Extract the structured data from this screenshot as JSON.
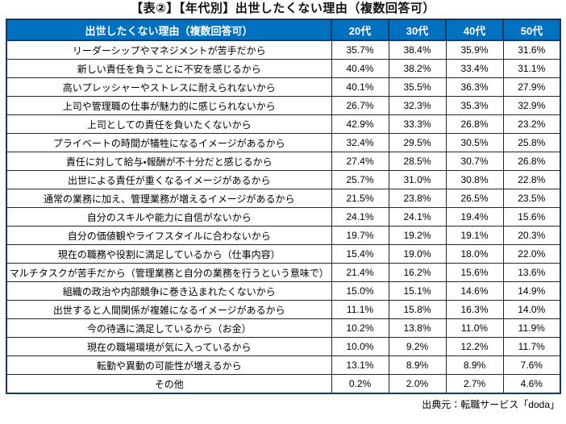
{
  "title": "【表②】【年代別】出世したくない理由（複数回答可）",
  "table": {
    "header": {
      "reason_label": "出世したくない理由（複数回答可）",
      "age_groups": [
        "20代",
        "30代",
        "40代",
        "50代"
      ]
    },
    "rows": [
      {
        "reason": "リーダーシップやマネジメントが苦手だから",
        "values": [
          "35.7%",
          "38.4%",
          "35.9%",
          "31.6%"
        ]
      },
      {
        "reason": "新しい責任を負うことに不安を感じるから",
        "values": [
          "40.4%",
          "38.2%",
          "33.4%",
          "31.1%"
        ]
      },
      {
        "reason": "高いプレッシャーやストレスに耐えられないから",
        "values": [
          "40.1%",
          "35.5%",
          "36.3%",
          "27.9%"
        ]
      },
      {
        "reason": "上司や管理職の仕事が魅力的に感じられないから",
        "values": [
          "26.7%",
          "32.3%",
          "35.3%",
          "32.9%"
        ]
      },
      {
        "reason": "上司としての責任を負いたくないから",
        "values": [
          "42.9%",
          "33.3%",
          "26.8%",
          "23.2%"
        ]
      },
      {
        "reason": "プライベートの時間が犠牲になるイメージがあるから",
        "values": [
          "32.4%",
          "29.5%",
          "30.5%",
          "25.8%"
        ]
      },
      {
        "reason": "責任に対して給与・報酬が不十分だと感じるから",
        "values": [
          "27.4%",
          "28.5%",
          "30.7%",
          "26.8%"
        ]
      },
      {
        "reason": "出世による責任が重くなるイメージがあるから",
        "values": [
          "25.7%",
          "31.0%",
          "30.8%",
          "22.8%"
        ]
      },
      {
        "reason": "通常の業務に加え、管理業務が増えるイメージがあるから",
        "values": [
          "21.5%",
          "23.8%",
          "26.5%",
          "23.5%"
        ]
      },
      {
        "reason": "自分のスキルや能力に自信がないから",
        "values": [
          "24.1%",
          "24.1%",
          "19.4%",
          "15.6%"
        ]
      },
      {
        "reason": "自分の価値観やライフスタイルに合わないから",
        "values": [
          "19.7%",
          "19.2%",
          "19.1%",
          "20.3%"
        ]
      },
      {
        "reason": "現在の職務や役割に満足しているから（仕事内容）",
        "values": [
          "15.4%",
          "19.0%",
          "18.0%",
          "22.0%"
        ]
      },
      {
        "reason": "マルチタスクが苦手だから（管理業務と自分の業務を行うという意味で）",
        "values": [
          "21.4%",
          "16.2%",
          "15.6%",
          "13.6%"
        ]
      },
      {
        "reason": "組織の政治や内部競争に巻き込まれたくないから",
        "values": [
          "15.0%",
          "15.1%",
          "14.6%",
          "14.9%"
        ]
      },
      {
        "reason": "出世すると人間関係が複雑になるイメージがあるから",
        "values": [
          "11.1%",
          "15.8%",
          "16.3%",
          "14.0%"
        ]
      },
      {
        "reason": "今の待遇に満足しているから（お金）",
        "values": [
          "10.2%",
          "13.8%",
          "11.0%",
          "11.9%"
        ]
      },
      {
        "reason": "現在の職場環境が気に入っているから",
        "values": [
          "10.0%",
          "9.2%",
          "12.2%",
          "11.7%"
        ]
      },
      {
        "reason": "転勤や異動の可能性が増えるから",
        "values": [
          "13.1%",
          "8.9%",
          "8.9%",
          "7.6%"
        ]
      },
      {
        "reason": "その他",
        "values": [
          "0.2%",
          "2.0%",
          "2.7%",
          "4.6%"
        ]
      }
    ]
  },
  "footer": {
    "source": "出典元：転職サービス「doda」"
  },
  "colors": {
    "header_bg": "#0070C0",
    "header_text": "#FFFFFF",
    "border_dark": "#17375E",
    "grid": "#262626"
  },
  "chart_data": {
    "type": "table",
    "title": "【表②】【年代別】出世したくない理由（複数回答可）",
    "categories": [
      "リーダーシップやマネジメントが苦手だから",
      "新しい責任を負うことに不安を感じるから",
      "高いプレッシャーやストレスに耐えられないから",
      "上司や管理職の仕事が魅力的に感じられないから",
      "上司としての責任を負いたくないから",
      "プライベートの時間が犠牲になるイメージがあるから",
      "責任に対して給与・報酬が不十分だと感じるから",
      "出世による責任が重くなるイメージがあるから",
      "通常の業務に加え、管理業務が増えるイメージがあるから",
      "自分のスキルや能力に自信がないから",
      "自分の価値観やライフスタイルに合わないから",
      "現在の職務や役割に満足しているから（仕事内容）",
      "マルチタスクが苦手だから（管理業務と自分の業務を行うという意味で）",
      "組織の政治や内部競争に巻き込まれたくないから",
      "出世すると人間関係が複雑になるイメージがあるから",
      "今の待遇に満足しているから（お金）",
      "現在の職場環境が気に入っているから",
      "転勤や異動の可能性が増えるから",
      "その他"
    ],
    "series": [
      {
        "name": "20代",
        "values": [
          35.7,
          40.4,
          40.1,
          26.7,
          42.9,
          32.4,
          27.4,
          25.7,
          21.5,
          24.1,
          19.7,
          15.4,
          21.4,
          15.0,
          11.1,
          10.2,
          10.0,
          13.1,
          0.2
        ]
      },
      {
        "name": "30代",
        "values": [
          38.4,
          38.2,
          35.5,
          32.3,
          33.3,
          29.5,
          28.5,
          31.0,
          23.8,
          24.1,
          19.2,
          19.0,
          16.2,
          15.1,
          15.8,
          13.8,
          9.2,
          8.9,
          2.0
        ]
      },
      {
        "name": "40代",
        "values": [
          35.9,
          33.4,
          36.3,
          35.3,
          26.8,
          30.5,
          30.7,
          30.8,
          26.5,
          19.4,
          19.1,
          18.0,
          15.6,
          14.6,
          16.3,
          11.0,
          12.2,
          8.9,
          2.7
        ]
      },
      {
        "name": "50代",
        "values": [
          31.6,
          31.1,
          27.9,
          32.9,
          23.2,
          25.8,
          26.8,
          22.8,
          23.5,
          15.6,
          20.3,
          22.0,
          13.6,
          14.9,
          14.0,
          11.9,
          11.7,
          7.6,
          4.6
        ]
      }
    ],
    "unit": "%",
    "source": "出典元：転職サービス「doda」"
  }
}
